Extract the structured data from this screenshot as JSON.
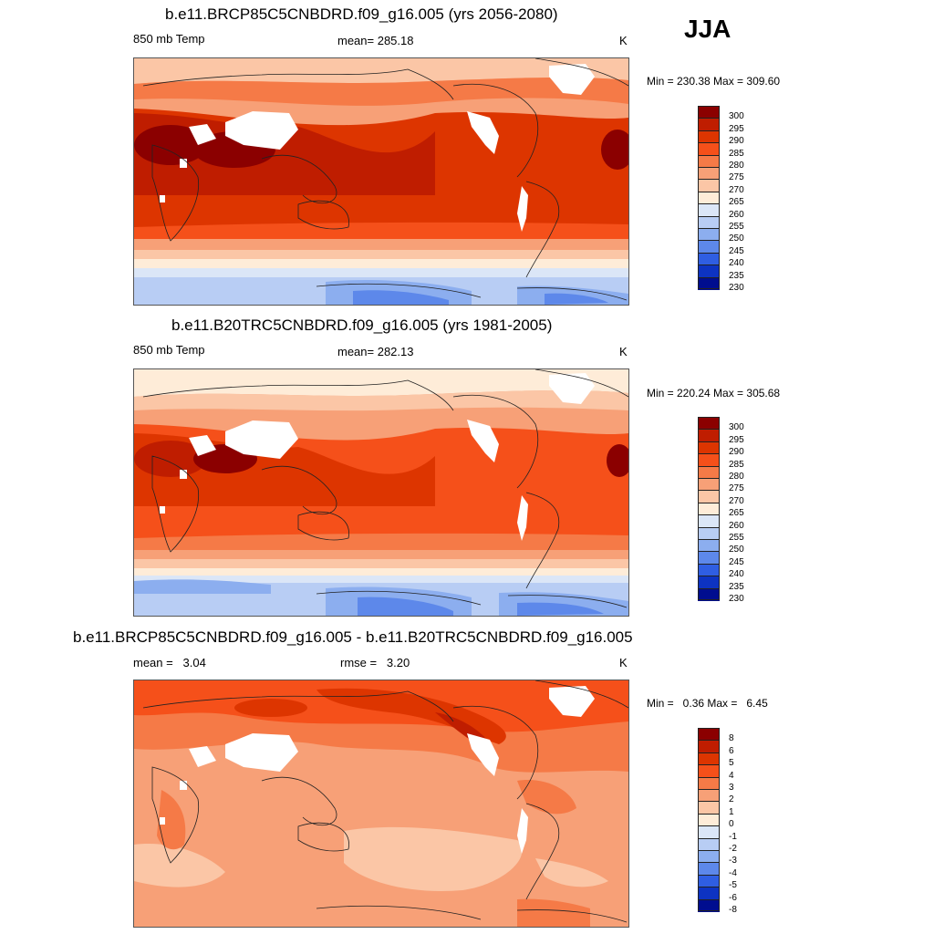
{
  "season": "JJA",
  "panels": [
    {
      "title": "b.e11.BRCP85C5CNBDRD.f09_g16.005 (yrs 2056-2080)",
      "left_label": "850 mb Temp",
      "center_label": "mean= 285.18",
      "unit": "K",
      "range_text": "Min = 230.38 Max = 309.60",
      "colorbar": {
        "labels": [
          "300",
          "295",
          "290",
          "285",
          "280",
          "275",
          "270",
          "265",
          "260",
          "255",
          "250",
          "245",
          "240",
          "235",
          "230"
        ],
        "colors": [
          "#8b0000",
          "#bf1d00",
          "#dd3500",
          "#f5501a",
          "#f57a47",
          "#f7a077",
          "#fbc6a6",
          "#feecd8",
          "#dbe6f7",
          "#b8cdf4",
          "#8caeef",
          "#5d88ea",
          "#2f5ee2",
          "#0d33c2",
          "#000d8f"
        ]
      }
    },
    {
      "title": "b.e11.B20TRC5CNBDRD.f09_g16.005 (yrs 1981-2005)",
      "left_label": "850 mb Temp",
      "center_label": "mean= 282.13",
      "unit": "K",
      "range_text": "Min = 220.24 Max = 305.68",
      "colorbar": {
        "labels": [
          "300",
          "295",
          "290",
          "285",
          "280",
          "275",
          "270",
          "265",
          "260",
          "255",
          "250",
          "245",
          "240",
          "235",
          "230"
        ],
        "colors": [
          "#8b0000",
          "#bf1d00",
          "#dd3500",
          "#f5501a",
          "#f57a47",
          "#f7a077",
          "#fbc6a6",
          "#feecd8",
          "#dbe6f7",
          "#b8cdf4",
          "#8caeef",
          "#5d88ea",
          "#2f5ee2",
          "#0d33c2",
          "#000d8f"
        ]
      }
    },
    {
      "title": "b.e11.BRCP85C5CNBDRD.f09_g16.005 - b.e11.B20TRC5CNBDRD.f09_g16.005",
      "left_label": "mean =   3.04",
      "center_label": "rmse =   3.20",
      "unit": "K",
      "range_text": "Min =   0.36 Max =   6.45",
      "colorbar": {
        "labels": [
          "8",
          "6",
          "5",
          "4",
          "3",
          "2",
          "1",
          "0",
          "-1",
          "-2",
          "-3",
          "-4",
          "-5",
          "-6",
          "-8"
        ],
        "colors": [
          "#8b0000",
          "#bf1d00",
          "#dd3500",
          "#f5501a",
          "#f57a47",
          "#f7a077",
          "#fbc6a6",
          "#feecd8",
          "#dbe6f7",
          "#b8cdf4",
          "#8caeef",
          "#5d88ea",
          "#2f5ee2",
          "#0d33c2",
          "#000d8f"
        ]
      }
    }
  ]
}
